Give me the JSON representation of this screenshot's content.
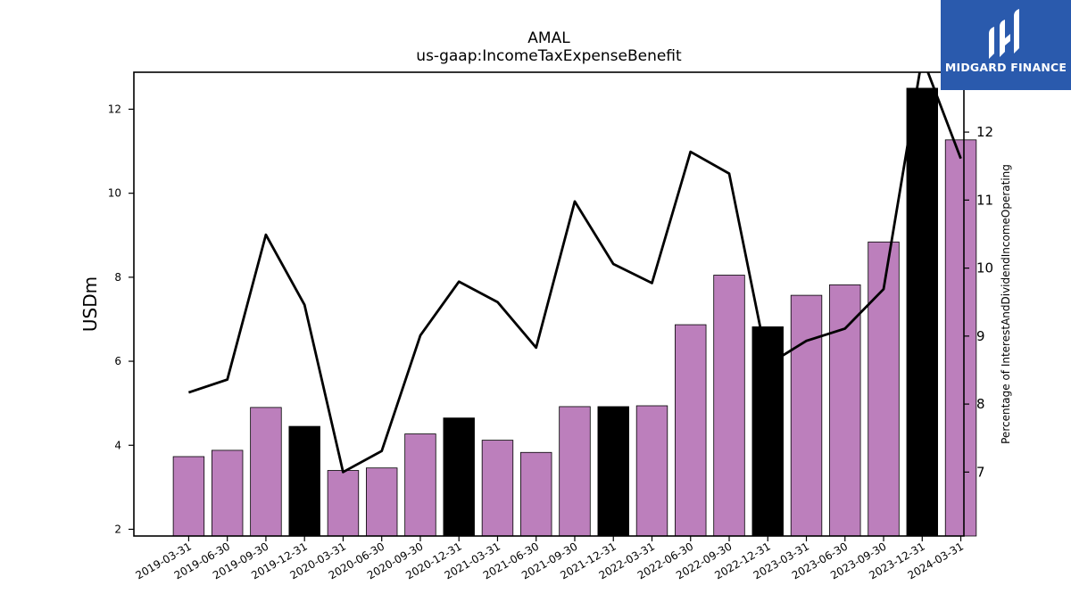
{
  "chart_data": {
    "type": "bar",
    "title": "AMAL",
    "subtitle": "us-gaap:IncomeTaxExpenseBenefit",
    "ylabel": "USDm",
    "ylabel_right": "Percentage of InterestAndDividendIncomeOperating",
    "categories": [
      "2019-03-31",
      "2019-06-30",
      "2019-09-30",
      "2019-12-31",
      "2020-03-31",
      "2020-06-30",
      "2020-09-30",
      "2020-12-31",
      "2021-03-31",
      "2021-06-30",
      "2021-09-30",
      "2021-12-31",
      "2022-03-31",
      "2022-06-30",
      "2022-09-30",
      "2022-12-31",
      "2023-03-31",
      "2023-06-30",
      "2023-09-30",
      "2023-12-31",
      "2024-03-31"
    ],
    "series": [
      {
        "axis": "left",
        "kind": "bar",
        "values": [
          3.73,
          3.88,
          4.9,
          4.45,
          3.4,
          3.46,
          4.27,
          4.65,
          4.12,
          3.83,
          4.92,
          4.92,
          4.94,
          6.87,
          8.05,
          6.82,
          7.57,
          7.82,
          8.84,
          12.5,
          11.27
        ],
        "colors": [
          "#bc7fbc",
          "#bc7fbc",
          "#bc7fbc",
          "#000000",
          "#bc7fbc",
          "#bc7fbc",
          "#bc7fbc",
          "#000000",
          "#bc7fbc",
          "#bc7fbc",
          "#bc7fbc",
          "#000000",
          "#bc7fbc",
          "#bc7fbc",
          "#bc7fbc",
          "#000000",
          "#bc7fbc",
          "#bc7fbc",
          "#bc7fbc",
          "#000000",
          "#bc7fbc"
        ]
      },
      {
        "axis": "right",
        "kind": "line",
        "color": "#000000",
        "values": [
          8.17,
          8.36,
          10.49,
          9.46,
          7.0,
          7.31,
          9.01,
          9.8,
          9.5,
          8.83,
          10.98,
          10.06,
          9.78,
          11.71,
          11.39,
          8.58,
          8.93,
          9.11,
          9.69,
          13.1,
          11.61
        ]
      }
    ],
    "ylim": [
      1.84,
      12.88
    ],
    "yticks": [
      "2",
      "4",
      "6",
      "8",
      "10",
      "12"
    ],
    "ylim_right": [
      6.06,
      12.88
    ],
    "yticks_right": [
      "7",
      "8",
      "9",
      "10",
      "11",
      "12"
    ],
    "grid": false,
    "bar_face_color": "#bc7fbc",
    "highlight_bar_color": "#000000"
  },
  "logo": {
    "brand": "MIDGARD FINANCE",
    "background": "#2a5aad"
  }
}
